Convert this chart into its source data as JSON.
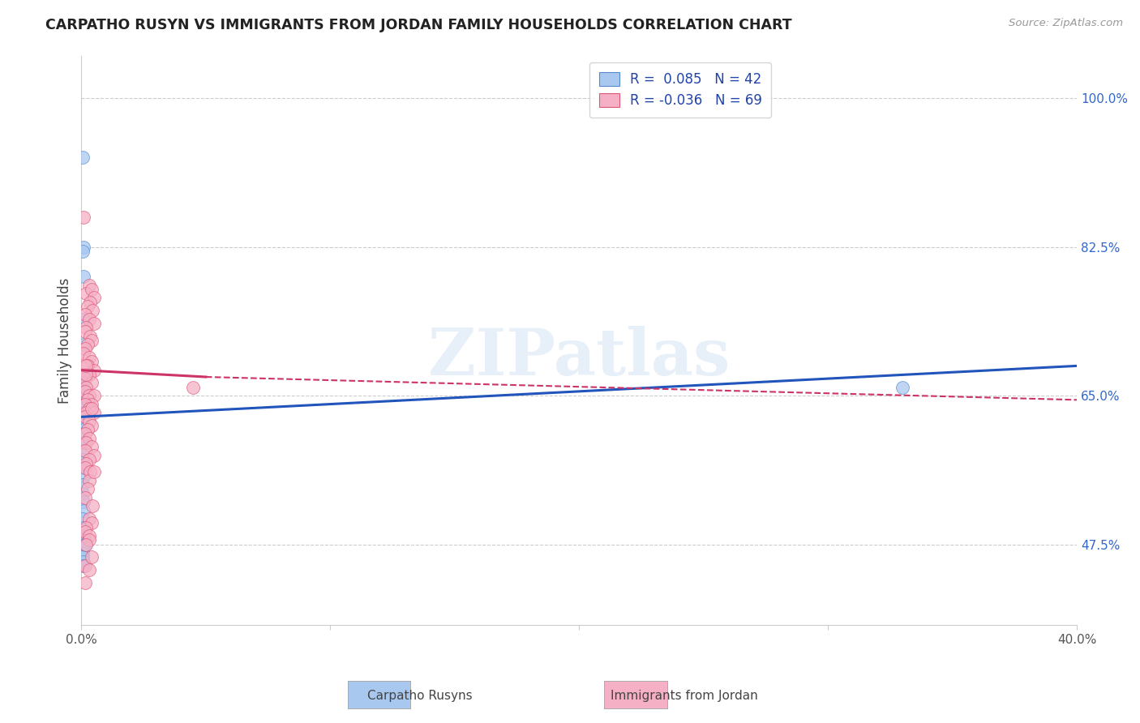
{
  "title": "CARPATHO RUSYN VS IMMIGRANTS FROM JORDAN FAMILY HOUSEHOLDS CORRELATION CHART",
  "source": "Source: ZipAtlas.com",
  "ylabel": "Family Households",
  "yticks": [
    47.5,
    65.0,
    82.5,
    100.0
  ],
  "ytick_labels": [
    "47.5%",
    "65.0%",
    "82.5%",
    "100.0%"
  ],
  "xmin": 0.0,
  "xmax": 40.0,
  "ymin": 38.0,
  "ymax": 105.0,
  "blue_R": 0.085,
  "blue_N": 42,
  "pink_R": -0.036,
  "pink_N": 69,
  "blue_label": "Carpatho Rusyns",
  "pink_label": "Immigrants from Jordan",
  "blue_color": "#a8c8f0",
  "pink_color": "#f5b0c5",
  "blue_edge_color": "#5588cc",
  "pink_edge_color": "#dd5577",
  "blue_line_color": "#2255bb",
  "pink_line_color": "#cc3366",
  "watermark": "ZIPatlas",
  "blue_scatter_x": [
    0.05,
    0.08,
    0.06,
    0.1,
    0.07,
    0.09,
    0.05,
    0.06,
    0.07,
    0.08,
    0.06,
    0.05,
    0.07,
    0.08,
    0.09,
    0.06,
    0.05,
    0.07,
    0.08,
    0.06,
    0.09,
    0.07,
    0.05,
    0.06,
    0.08,
    0.1,
    0.07,
    0.06,
    0.08,
    0.09,
    0.05,
    0.07,
    0.1,
    0.12,
    0.08,
    0.06,
    0.05,
    0.07,
    0.09,
    0.06,
    33.0,
    0.15
  ],
  "blue_scatter_y": [
    93.0,
    82.5,
    82.0,
    79.0,
    74.0,
    71.0,
    67.5,
    66.5,
    66.0,
    65.5,
    65.0,
    64.5,
    64.0,
    63.5,
    63.0,
    62.5,
    62.0,
    61.5,
    61.0,
    60.5,
    60.0,
    59.5,
    58.5,
    57.5,
    56.5,
    55.5,
    54.5,
    53.5,
    52.5,
    51.5,
    50.5,
    49.5,
    48.5,
    48.0,
    47.5,
    47.0,
    46.5,
    46.0,
    45.5,
    45.0,
    66.0,
    47.5
  ],
  "pink_scatter_x": [
    0.1,
    0.3,
    0.2,
    0.4,
    0.5,
    0.35,
    0.25,
    0.45,
    0.15,
    0.3,
    0.5,
    0.2,
    0.15,
    0.35,
    0.4,
    0.25,
    0.15,
    0.08,
    0.3,
    0.4,
    0.25,
    0.5,
    0.3,
    0.15,
    0.4,
    0.2,
    0.15,
    0.3,
    0.5,
    0.25,
    0.4,
    0.15,
    0.3,
    0.2,
    0.5,
    0.15,
    0.3,
    0.4,
    0.25,
    0.15,
    0.3,
    0.2,
    0.4,
    0.15,
    0.5,
    0.3,
    0.2,
    0.15,
    0.35,
    0.3,
    0.25,
    0.15,
    0.45,
    0.3,
    0.4,
    0.2,
    0.15,
    0.3,
    0.2,
    4.5,
    0.4,
    0.15,
    0.3,
    0.2,
    0.5,
    0.15,
    0.3,
    0.4,
    0.2
  ],
  "pink_scatter_y": [
    86.0,
    78.0,
    77.0,
    77.5,
    76.5,
    76.0,
    75.5,
    75.0,
    74.5,
    74.0,
    73.5,
    73.0,
    72.5,
    72.0,
    71.5,
    71.0,
    70.5,
    70.0,
    69.5,
    69.0,
    68.5,
    68.0,
    67.5,
    67.0,
    66.5,
    66.0,
    65.5,
    65.0,
    65.0,
    64.5,
    64.0,
    64.0,
    63.5,
    63.0,
    63.0,
    62.5,
    62.0,
    61.5,
    61.0,
    60.5,
    60.0,
    59.5,
    59.0,
    58.5,
    58.0,
    57.5,
    57.0,
    56.5,
    56.0,
    55.0,
    54.0,
    53.0,
    52.0,
    50.5,
    50.0,
    49.5,
    49.0,
    48.5,
    67.5,
    66.0,
    63.5,
    45.0,
    48.0,
    47.5,
    56.0,
    43.0,
    44.5,
    46.0,
    68.5
  ],
  "blue_line_x0": 0.0,
  "blue_line_x1": 40.0,
  "blue_line_y0": 62.5,
  "blue_line_y1": 68.5,
  "pink_solid_x0": 0.0,
  "pink_solid_x1": 5.0,
  "pink_solid_y0": 68.0,
  "pink_solid_y1": 67.2,
  "pink_dash_x0": 5.0,
  "pink_dash_x1": 40.0,
  "pink_dash_y0": 67.2,
  "pink_dash_y1": 64.5
}
